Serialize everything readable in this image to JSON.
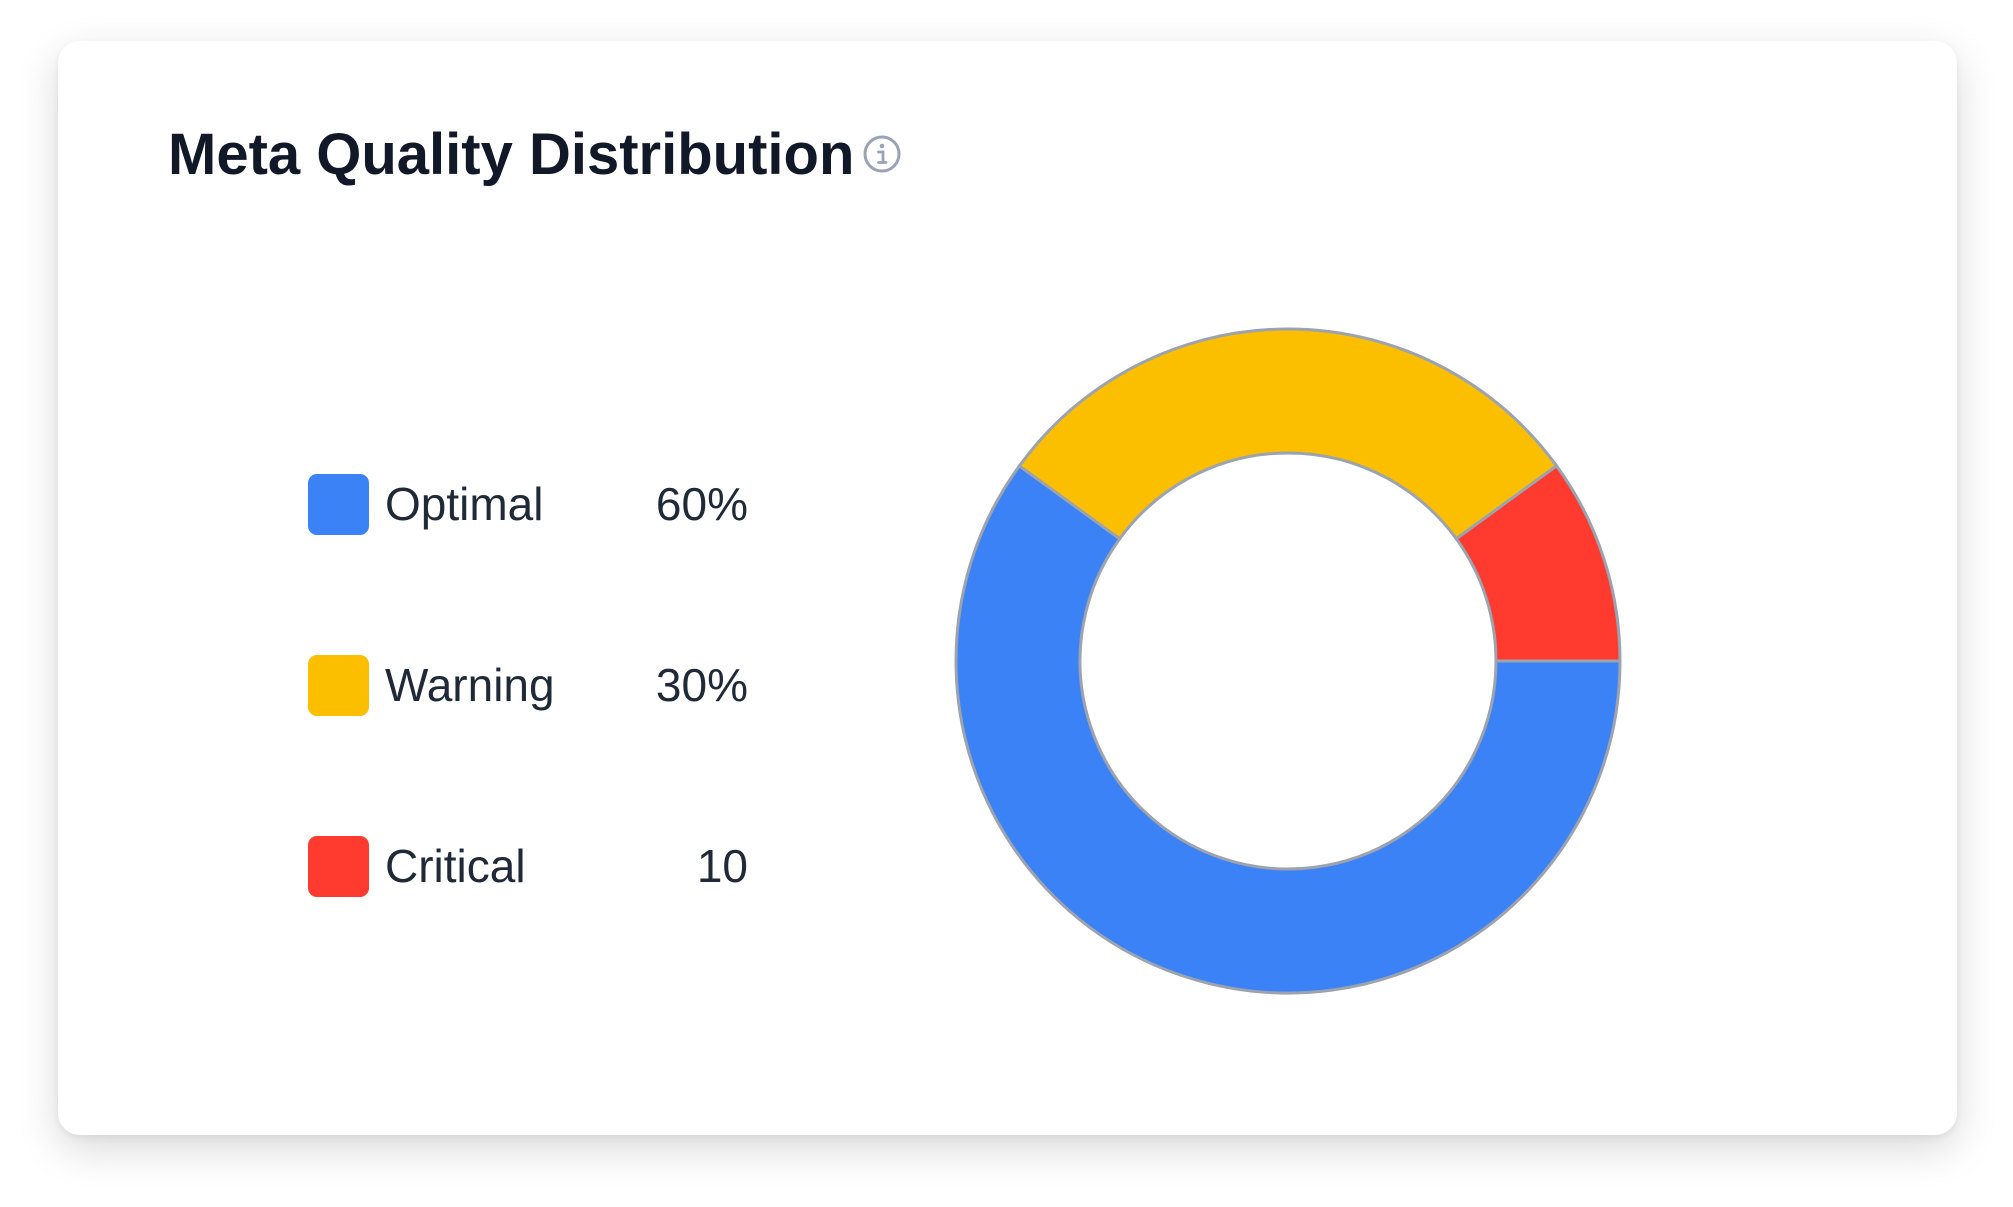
{
  "card": {
    "title": "Meta Quality Distribution",
    "info_icon": "info-circle-icon"
  },
  "legend": [
    {
      "label": "Optimal",
      "value": "60%",
      "color": "#3b82f6"
    },
    {
      "label": "Warning",
      "value": "30%",
      "color": "#fbbf00"
    },
    {
      "label": "Critical",
      "value": "10",
      "color": "#ff3b30"
    }
  ],
  "chart_data": {
    "type": "pie",
    "donut": true,
    "categories": [
      "Optimal",
      "Warning",
      "Critical"
    ],
    "values": [
      60,
      30,
      10
    ],
    "colors": [
      "#3b82f6",
      "#fbbf00",
      "#ff3b30"
    ],
    "slice_border_color": "#9ca3af",
    "legend": "left"
  }
}
